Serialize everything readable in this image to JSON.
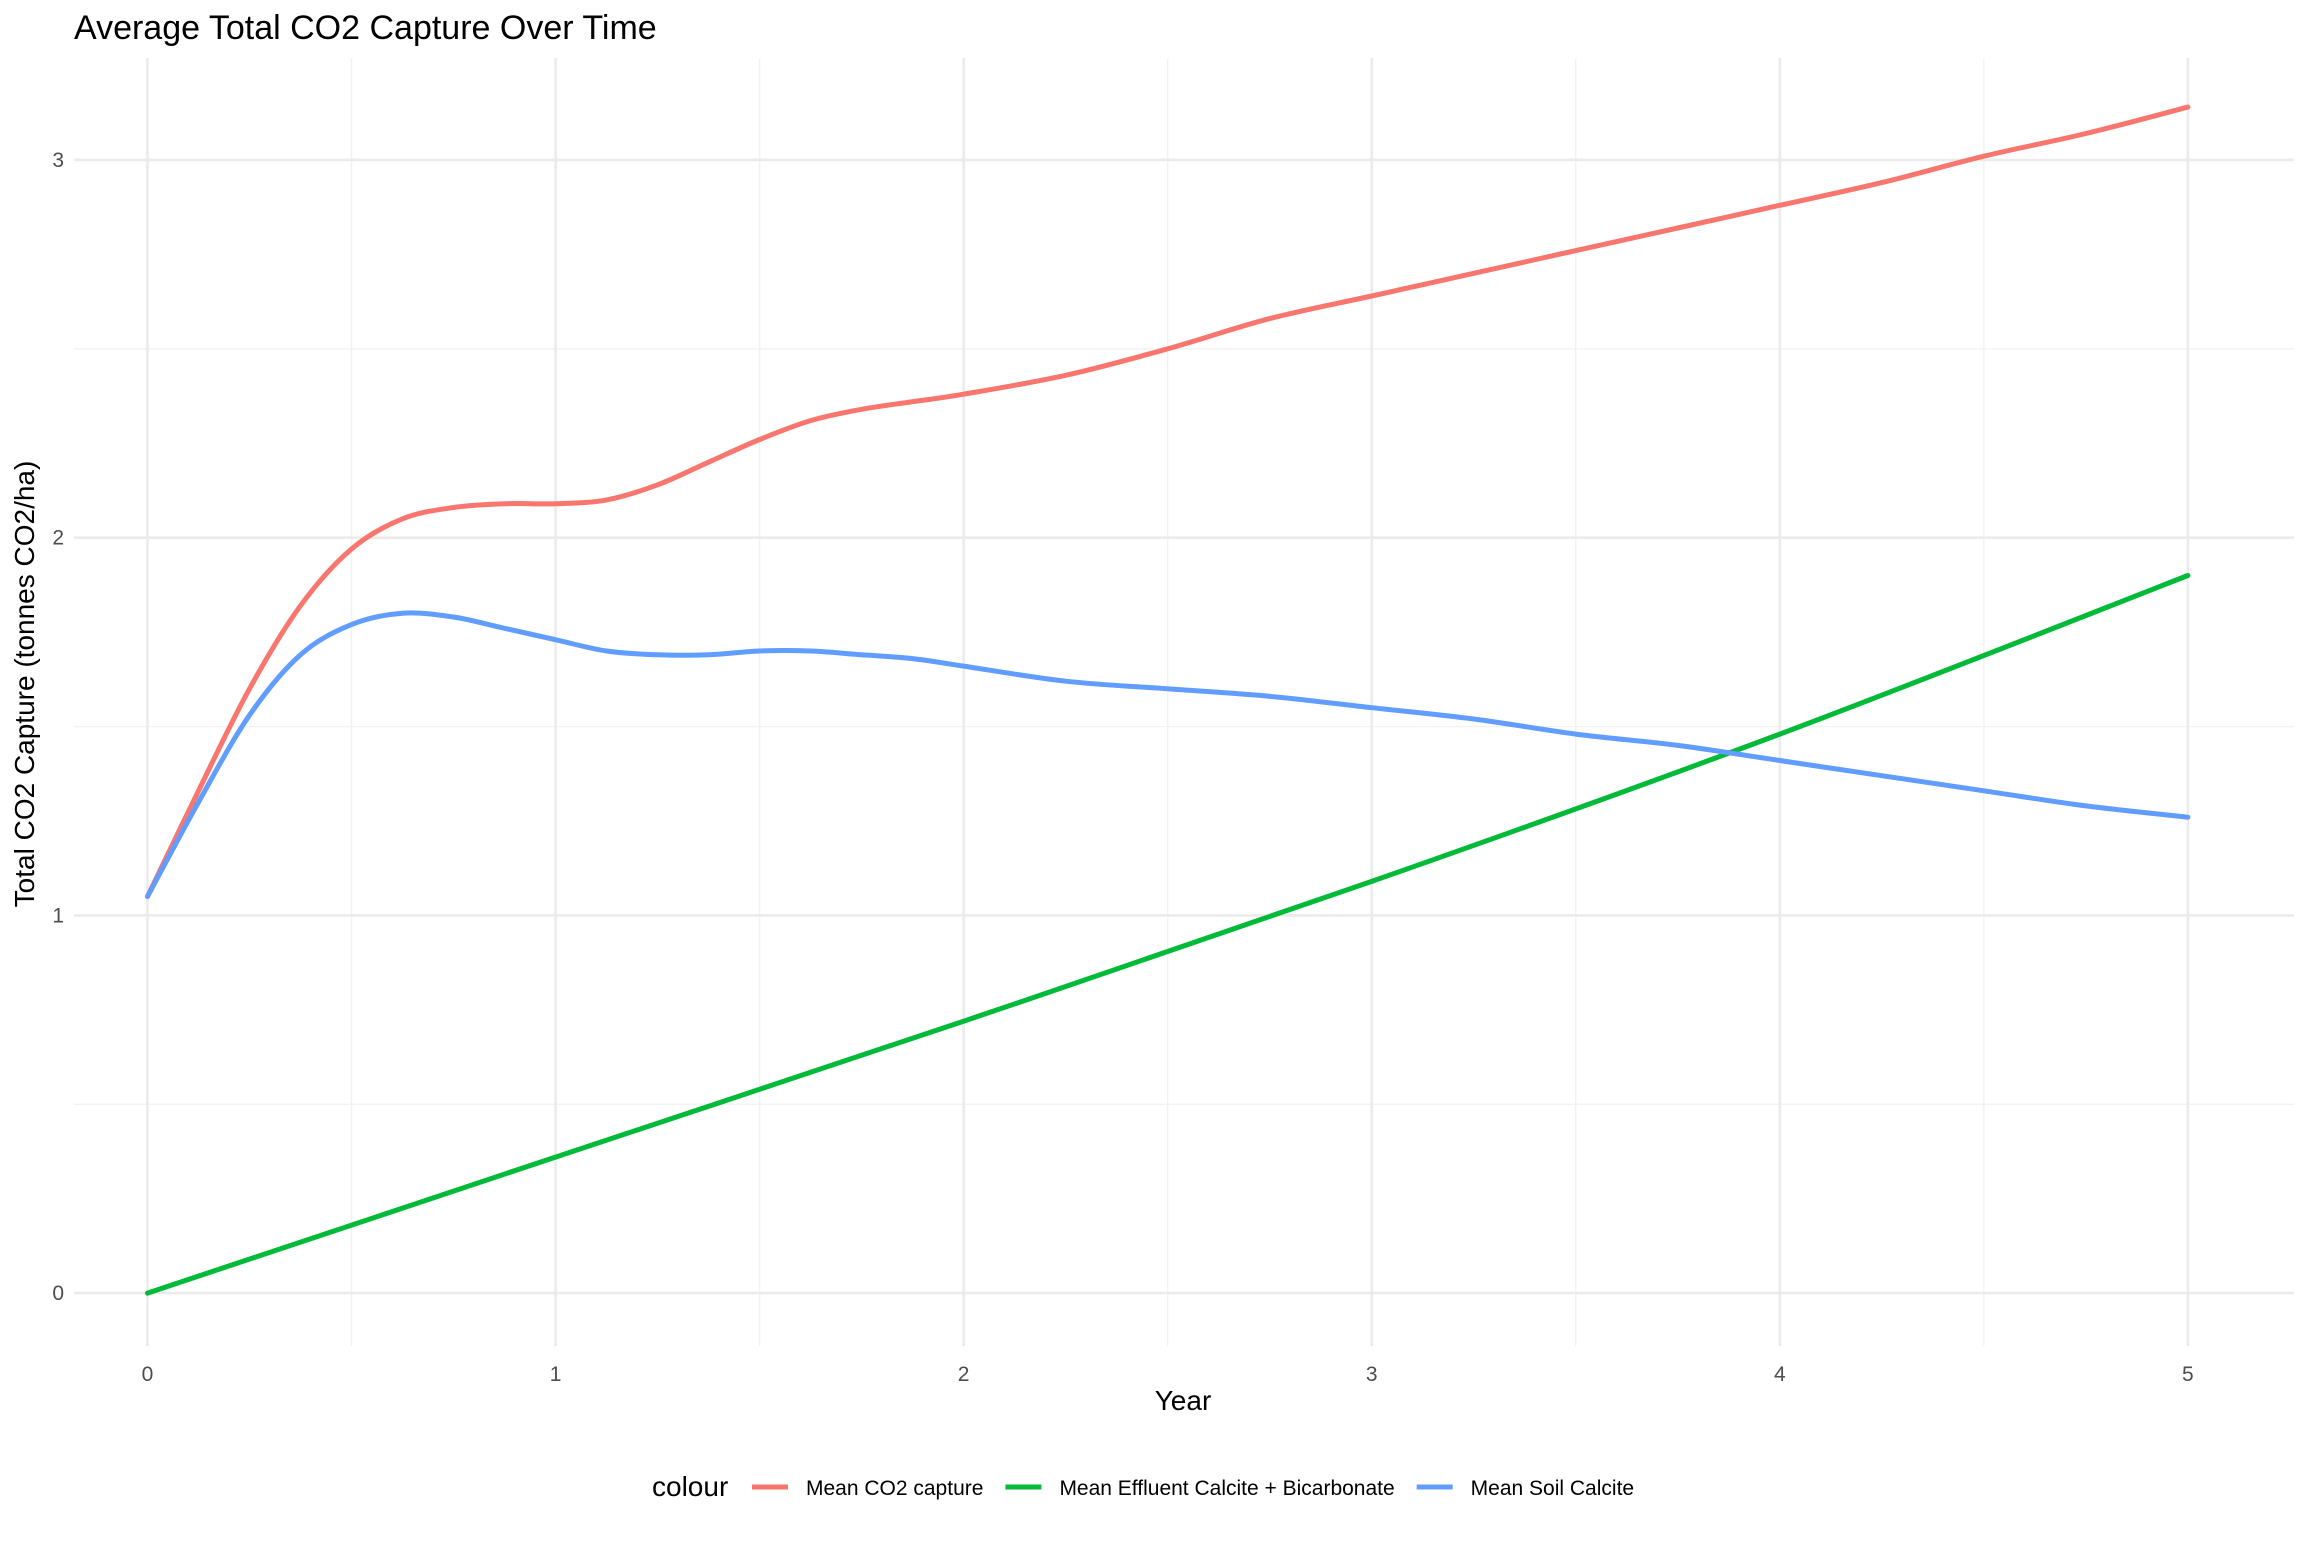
{
  "chart_data": {
    "type": "line",
    "title": "Average Total CO2 Capture Over Time",
    "xlabel": "Year",
    "ylabel": "Total CO2 Capture (tonnes CO2/ha)",
    "xlim": [
      -0.18,
      5.26
    ],
    "ylim": [
      -0.14,
      3.27
    ],
    "x_ticks": [
      0,
      1,
      2,
      3,
      4,
      5
    ],
    "x_tick_labels": [
      "0",
      "1",
      "2",
      "3",
      "4",
      "5"
    ],
    "y_ticks": [
      0,
      1,
      2,
      3
    ],
    "y_tick_labels": [
      "0",
      "1",
      "2",
      "3"
    ],
    "x_minor_ticks": [
      0.5,
      1.5,
      2.5,
      3.5,
      4.5
    ],
    "y_minor_ticks": [
      0.5,
      1.5,
      2.5
    ],
    "grid": true,
    "legend": {
      "title": "colour",
      "position": "bottom"
    },
    "series": [
      {
        "name": "Mean CO2 capture",
        "color": "#F8766D",
        "x": [
          0,
          0.125,
          0.25,
          0.375,
          0.5,
          0.625,
          0.75,
          0.875,
          1.0,
          1.125,
          1.25,
          1.375,
          1.5,
          1.625,
          1.75,
          1.875,
          2.0,
          2.25,
          2.5,
          2.75,
          3.0,
          3.25,
          3.5,
          3.75,
          4.0,
          4.25,
          4.5,
          4.75,
          5.0
        ],
        "y": [
          1.05,
          1.33,
          1.6,
          1.82,
          1.97,
          2.05,
          2.08,
          2.09,
          2.09,
          2.1,
          2.14,
          2.2,
          2.26,
          2.31,
          2.34,
          2.36,
          2.38,
          2.43,
          2.5,
          2.58,
          2.64,
          2.7,
          2.76,
          2.82,
          2.88,
          2.94,
          3.01,
          3.07,
          3.14
        ]
      },
      {
        "name": "Mean Effluent Calcite + Bicarbonate",
        "color": "#00BA38",
        "x": [
          0,
          1,
          2,
          3,
          4,
          5
        ],
        "y": [
          0.0,
          0.36,
          0.72,
          1.09,
          1.48,
          1.9
        ]
      },
      {
        "name": "Mean Soil Calcite",
        "color": "#619CFF",
        "x": [
          0,
          0.125,
          0.25,
          0.375,
          0.5,
          0.625,
          0.75,
          0.875,
          1.0,
          1.125,
          1.25,
          1.375,
          1.5,
          1.625,
          1.75,
          1.875,
          2.0,
          2.25,
          2.5,
          2.75,
          3.0,
          3.25,
          3.5,
          3.75,
          4.0,
          4.25,
          4.5,
          4.75,
          5.0
        ],
        "y": [
          1.05,
          1.3,
          1.53,
          1.69,
          1.77,
          1.8,
          1.79,
          1.76,
          1.73,
          1.7,
          1.69,
          1.69,
          1.7,
          1.7,
          1.69,
          1.68,
          1.66,
          1.62,
          1.6,
          1.58,
          1.55,
          1.52,
          1.48,
          1.45,
          1.41,
          1.37,
          1.33,
          1.29,
          1.26
        ]
      }
    ]
  }
}
